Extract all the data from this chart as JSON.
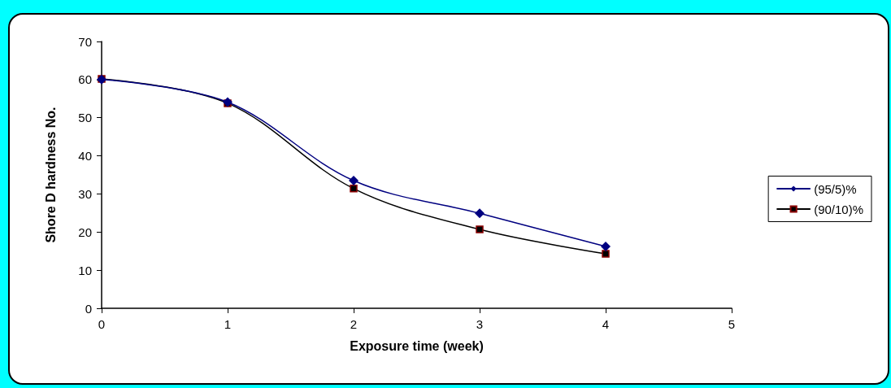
{
  "chart_data": {
    "type": "line",
    "xlabel": "Exposure time (week)",
    "ylabel": "Shore D hardness No.",
    "x": [
      0,
      1,
      2,
      3,
      4
    ],
    "series": [
      {
        "name": "(95/5)%",
        "color": "#000080",
        "marker": "diamond",
        "values": [
          60,
          54.1,
          33.5,
          24.9,
          16.2
        ]
      },
      {
        "name": "(90/10)%",
        "color": "#000000",
        "marker": "square",
        "values": [
          60.2,
          53.8,
          31.4,
          20.7,
          14.3
        ]
      }
    ],
    "xlim": [
      0,
      5
    ],
    "xticks": [
      0,
      1,
      2,
      3,
      4,
      5
    ],
    "ylim": [
      0,
      70
    ],
    "yticks": [
      0,
      10,
      20,
      30,
      40,
      50,
      60,
      70
    ],
    "grid": false,
    "legend": "right",
    "line_style": "solid"
  }
}
